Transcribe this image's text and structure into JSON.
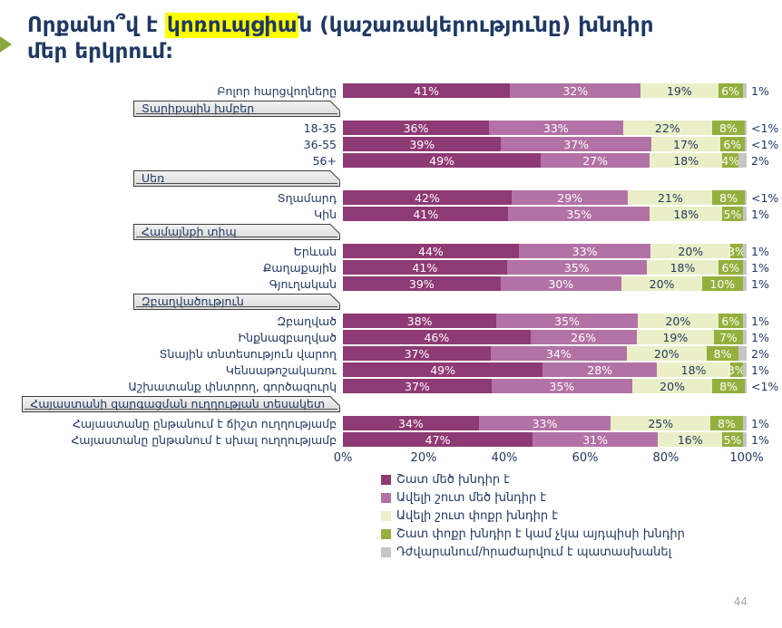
{
  "slide": {
    "title": {
      "pre": "Որքանո՞վ է ",
      "highlight": "կոռուպցիա",
      "post": "ն (կաշառակերությունը) խնդիր մեր երկրում:"
    },
    "page_number": "44"
  },
  "colors": {
    "title_text": "#1F3864",
    "highlight": "#FFFF00",
    "arrow_green": "#84A83C",
    "page_number": "#A9A9A9",
    "section_box_fill": "#E6E6E6",
    "section_box_border": "#3F3F3F"
  },
  "chart_data": {
    "type": "bar",
    "orientation": "horizontal-stacked",
    "xlim": [
      0,
      100
    ],
    "x_ticks": [
      "0%",
      "20%",
      "40%",
      "60%",
      "80%",
      "100%"
    ],
    "legend_position": "bottom",
    "series": [
      "Շատ մեծ խնդիր է",
      "Ավելի շուտ մեծ խնդիր է",
      "Ավելի շուտ փոքր խնդիր է",
      "Շատ փոքր խնդիր է կամ չկա այդպիսի խնդիր",
      "Դժվարանում/հրաժարվում է պատասխանել"
    ],
    "series_colors": [
      "#8E3A74",
      "#B272A5",
      "#EAEFC8",
      "#93B03D",
      "#C5C5C5"
    ],
    "rows": [
      {
        "type": "bar",
        "label": "Բոլոր հարցվողները",
        "values": [
          41,
          32,
          19,
          6,
          1
        ],
        "labels": [
          "41%",
          "32%",
          "19%",
          "6%",
          "1%"
        ]
      },
      {
        "type": "section",
        "label": "Տարիքային խմբեր"
      },
      {
        "type": "bar",
        "label": "18-35",
        "values": [
          36,
          33,
          22,
          8,
          0.5
        ],
        "labels": [
          "36%",
          "33%",
          "22%",
          "8%",
          "<1%"
        ]
      },
      {
        "type": "bar",
        "label": "36-55",
        "values": [
          39,
          37,
          17,
          6,
          0.5
        ],
        "labels": [
          "39%",
          "37%",
          "17%",
          "6%",
          "<1%"
        ]
      },
      {
        "type": "bar",
        "label": "56+",
        "values": [
          49,
          27,
          18,
          4,
          2
        ],
        "labels": [
          "49%",
          "27%",
          "18%",
          "4%",
          "2%"
        ]
      },
      {
        "type": "section",
        "label": "Սեռ"
      },
      {
        "type": "bar",
        "label": "Տղամարդ",
        "values": [
          42,
          29,
          21,
          8,
          0.5
        ],
        "labels": [
          "42%",
          "29%",
          "21%",
          "8%",
          "<1%"
        ]
      },
      {
        "type": "bar",
        "label": "Կին",
        "values": [
          41,
          35,
          18,
          5,
          1
        ],
        "labels": [
          "41%",
          "35%",
          "18%",
          "5%",
          "1%"
        ]
      },
      {
        "type": "section",
        "label": "Համայնքի տիպ"
      },
      {
        "type": "bar",
        "label": "Երևան",
        "values": [
          44,
          33,
          20,
          3,
          1
        ],
        "labels": [
          "44%",
          "33%",
          "20%",
          "3%",
          "1%"
        ]
      },
      {
        "type": "bar",
        "label": "Քաղաքային",
        "values": [
          41,
          35,
          18,
          6,
          1
        ],
        "labels": [
          "41%",
          "35%",
          "18%",
          "6%",
          "1%"
        ]
      },
      {
        "type": "bar",
        "label": "Գյուղական",
        "values": [
          39,
          30,
          20,
          10,
          1
        ],
        "labels": [
          "39%",
          "30%",
          "20%",
          "10%",
          "1%"
        ]
      },
      {
        "type": "section",
        "label": "Զբաղվածություն"
      },
      {
        "type": "bar",
        "label": "Զբաղված",
        "values": [
          38,
          35,
          20,
          6,
          1
        ],
        "labels": [
          "38%",
          "35%",
          "20%",
          "6%",
          "1%"
        ]
      },
      {
        "type": "bar",
        "label": "Ինքնազբաղված",
        "values": [
          46,
          26,
          19,
          7,
          1
        ],
        "labels": [
          "46%",
          "26%",
          "19%",
          "7%",
          "1%"
        ]
      },
      {
        "type": "bar",
        "label": "Տնային տնտեսություն վարող",
        "values": [
          37,
          34,
          20,
          8,
          2
        ],
        "labels": [
          "37%",
          "34%",
          "20%",
          "8%",
          "2%"
        ]
      },
      {
        "type": "bar",
        "label": "Կենսաթոշակառու",
        "values": [
          49,
          28,
          18,
          3,
          1
        ],
        "labels": [
          "49%",
          "28%",
          "18%",
          "3%",
          "1%"
        ]
      },
      {
        "type": "bar",
        "label": "Աշխատանք փնտրող, գործազուրկ",
        "values": [
          37,
          35,
          20,
          8,
          0.5
        ],
        "labels": [
          "37%",
          "35%",
          "20%",
          "8%",
          "<1%"
        ]
      },
      {
        "type": "section",
        "label": "Հայաստանի զարգացման ուղղության տեսակետ"
      },
      {
        "type": "bar",
        "label": "Հայաստանը ընթանում է ճիշտ ուղղությամբ",
        "values": [
          34,
          33,
          25,
          8,
          1
        ],
        "labels": [
          "34%",
          "33%",
          "25%",
          "8%",
          "1%"
        ]
      },
      {
        "type": "bar",
        "label": "Հայաստանը ընթանում է սխալ ուղղությամբ",
        "values": [
          47,
          31,
          16,
          5,
          1
        ],
        "labels": [
          "47%",
          "31%",
          "16%",
          "5%",
          "1%"
        ]
      }
    ]
  }
}
